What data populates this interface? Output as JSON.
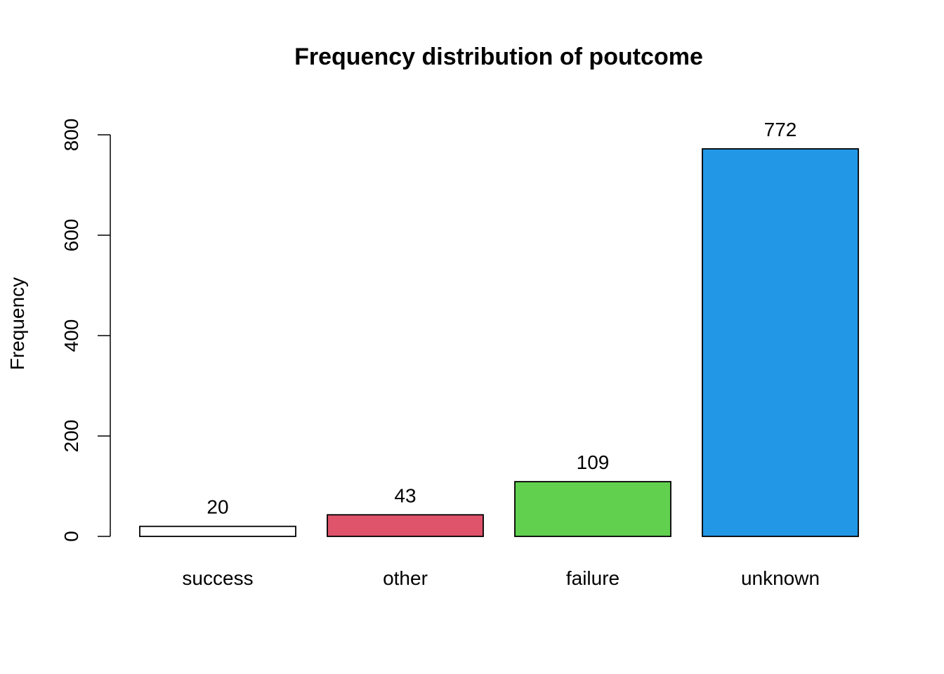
{
  "chart_data": {
    "type": "bar",
    "title": "Frequency distribution of poutcome",
    "xlabel": "",
    "ylabel": "Frequency",
    "categories": [
      "success",
      "other",
      "failure",
      "unknown"
    ],
    "values": [
      20,
      43,
      109,
      772
    ],
    "data_labels": [
      "20",
      "43",
      "109",
      "772"
    ],
    "colors": [
      "#FFFFFF",
      "#DF536B",
      "#61D04F",
      "#2297E6"
    ],
    "ylim": [
      0,
      800
    ],
    "yticks": [
      0,
      200,
      400,
      600,
      800
    ],
    "ytick_labels": [
      "0",
      "200",
      "400",
      "600",
      "800"
    ],
    "grid": false,
    "legend": "none"
  }
}
